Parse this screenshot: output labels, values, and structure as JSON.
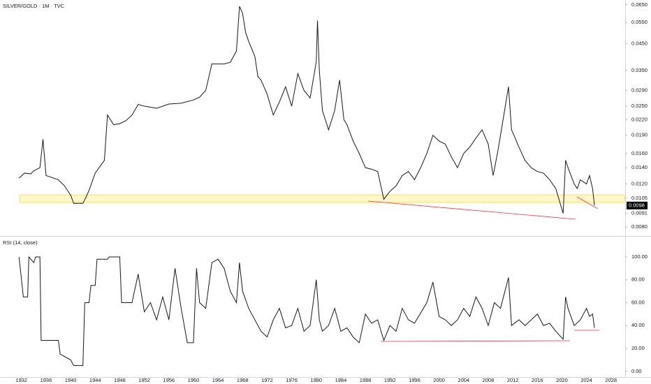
{
  "chart_data": [
    {
      "type": "line",
      "title": "SILVER/GOLD · 1M · TVC",
      "log": true,
      "x": [
        1931.6,
        1932.5,
        1933.5,
        1934,
        1935,
        1935.5,
        1936,
        1938,
        1939,
        1940,
        1940.5,
        1942,
        1942.5,
        1943,
        1944,
        1945.5,
        1946,
        1947,
        1948,
        1949,
        1950,
        1951,
        1952,
        1954,
        1956,
        1958,
        1960,
        1961,
        1962,
        1963,
        1965,
        1966,
        1967,
        1967.5,
        1968,
        1968.5,
        1969,
        1970,
        1970.5,
        1971,
        1972,
        1973,
        1974,
        1975,
        1976,
        1977,
        1978,
        1979,
        1980,
        1980.2,
        1980.5,
        1981,
        1982,
        1983,
        1983.8,
        1984.5,
        1985,
        1986,
        1987,
        1988,
        1989,
        1990,
        1991,
        1992,
        1993,
        1994,
        1995,
        1996,
        1997,
        1998,
        1999,
        2000,
        2001,
        2002,
        2003,
        2004,
        2005,
        2006,
        2007,
        2008,
        2008.8,
        2009.5,
        2010,
        2011.3,
        2011.8,
        2012,
        2013,
        2014,
        2015,
        2016,
        2017,
        2018,
        2019,
        2020.2,
        2020.6,
        2021,
        2022,
        2022.5,
        2023,
        2024,
        2024.5,
        2025,
        2025.3
      ],
      "series": [
        {
          "color": "#131722",
          "values": [
            0.0127,
            0.0133,
            0.0132,
            0.0136,
            0.014,
            0.0183,
            0.013,
            0.0125,
            0.0118,
            0.0108,
            0.01,
            0.01,
            0.0106,
            0.0113,
            0.0133,
            0.015,
            0.023,
            0.021,
            0.0212,
            0.0218,
            0.023,
            0.0254,
            0.025,
            0.0245,
            0.0255,
            0.0257,
            0.0265,
            0.0272,
            0.029,
            0.0372,
            0.0372,
            0.0378,
            0.042,
            0.064,
            0.06,
            0.05,
            0.046,
            0.04,
            0.033,
            0.032,
            0.028,
            0.023,
            0.026,
            0.03,
            0.025,
            0.034,
            0.029,
            0.027,
            0.038,
            0.056,
            0.035,
            0.024,
            0.02,
            0.024,
            0.032,
            0.022,
            0.021,
            0.018,
            0.016,
            0.014,
            0.0138,
            0.0135,
            0.0104,
            0.0112,
            0.0118,
            0.013,
            0.0135,
            0.0125,
            0.014,
            0.016,
            0.019,
            0.018,
            0.0175,
            0.0155,
            0.014,
            0.016,
            0.017,
            0.0185,
            0.02,
            0.0175,
            0.013,
            0.016,
            0.019,
            0.03,
            0.02,
            0.0195,
            0.017,
            0.015,
            0.014,
            0.0135,
            0.0133,
            0.0125,
            0.0115,
            0.0091,
            0.015,
            0.014,
            0.012,
            0.0115,
            0.0125,
            0.012,
            0.013,
            0.0115,
            0.0098
          ]
        }
      ],
      "last_value": {
        "value": 0.0098,
        "label": "0.0098"
      },
      "xlim": [
        1928.5,
        2030.3
      ],
      "ylim": [
        0.0075,
        0.068
      ],
      "yticks": [
        {
          "value": 0.065,
          "label": "0.0650"
        },
        {
          "value": 0.055,
          "label": "0.0550"
        },
        {
          "value": 0.045,
          "label": "0.0450"
        },
        {
          "value": 0.035,
          "label": "0.0350"
        },
        {
          "value": 0.029,
          "label": "0.0290"
        },
        {
          "value": 0.025,
          "label": "0.0250"
        },
        {
          "value": 0.022,
          "label": "0.0220"
        },
        {
          "value": 0.019,
          "label": "0.0190"
        },
        {
          "value": 0.016,
          "label": "0.0160"
        },
        {
          "value": 0.014,
          "label": "0.0140"
        },
        {
          "value": 0.012,
          "label": "0.0120"
        },
        {
          "value": 0.0105,
          "label": "0.0105"
        },
        {
          "value": 0.0091,
          "label": "0.0091"
        },
        {
          "value": 0.008,
          "label": "0.0080"
        }
      ]
    },
    {
      "type": "line",
      "title": "RSI (14, close)",
      "x": [
        1931.6,
        1932.3,
        1933,
        1933.2,
        1934,
        1934.3,
        1935,
        1935.2,
        1938,
        1938.3,
        1940,
        1940.5,
        1942,
        1942.3,
        1943,
        1943.3,
        1944,
        1944.3,
        1946,
        1946.3,
        1948,
        1948.3,
        1950,
        1951,
        1952,
        1953,
        1954,
        1955,
        1956,
        1957,
        1958,
        1959,
        1960,
        1960.5,
        1961,
        1962,
        1963,
        1964,
        1965,
        1966,
        1967,
        1967.5,
        1968,
        1969,
        1970,
        1971,
        1972,
        1973,
        1974,
        1975,
        1976,
        1977,
        1978,
        1979,
        1980,
        1980.5,
        1981,
        1982,
        1983,
        1984,
        1985,
        1986,
        1987,
        1988,
        1989,
        1990,
        1991,
        1992,
        1993,
        1994,
        1995,
        1996,
        1998,
        1999,
        2000,
        2001,
        2002,
        2003,
        2004,
        2005,
        2006,
        2007,
        2008,
        2009,
        2010,
        2011.3,
        2011.8,
        2013,
        2014,
        2015,
        2016,
        2017,
        2018,
        2019,
        2020.2,
        2020.6,
        2021,
        2022,
        2023,
        2024,
        2024.5,
        2025,
        2025.3
      ],
      "series": [
        {
          "color": "#131722",
          "values": [
            100,
            65,
            65,
            100,
            95,
            100,
            100,
            27,
            27,
            15,
            10,
            5,
            5,
            60,
            60,
            75,
            75,
            98,
            98,
            100,
            100,
            60,
            60,
            85,
            52,
            60,
            45,
            65,
            45,
            90,
            55,
            25,
            25,
            90,
            60,
            55,
            95,
            98,
            90,
            70,
            60,
            95,
            70,
            55,
            45,
            35,
            30,
            45,
            55,
            38,
            40,
            55,
            35,
            40,
            80,
            45,
            35,
            40,
            55,
            35,
            38,
            30,
            25,
            50,
            42,
            45,
            27,
            40,
            35,
            55,
            45,
            42,
            60,
            78,
            48,
            45,
            40,
            45,
            55,
            48,
            65,
            55,
            40,
            60,
            55,
            82,
            40,
            45,
            40,
            45,
            50,
            40,
            42,
            35,
            28,
            65,
            55,
            40,
            45,
            55,
            48,
            50,
            38
          ]
        }
      ],
      "xlim": [
        1928.5,
        2030.3
      ],
      "ylim": [
        -5,
        114
      ],
      "yticks": [
        {
          "value": 100,
          "label": "100.00"
        },
        {
          "value": 80,
          "label": "80.00"
        },
        {
          "value": 60,
          "label": "60.00"
        },
        {
          "value": 40,
          "label": "40.00"
        },
        {
          "value": 20,
          "label": "20.00"
        },
        {
          "value": 0,
          "label": "0.00"
        }
      ],
      "xticks": [
        1932,
        1936,
        1940,
        1944,
        1948,
        1952,
        1956,
        1960,
        1964,
        1968,
        1972,
        1976,
        1980,
        1984,
        1988,
        1992,
        1996,
        2000,
        2004,
        2008,
        2012,
        2016,
        2020,
        2024,
        2028
      ]
    }
  ]
}
